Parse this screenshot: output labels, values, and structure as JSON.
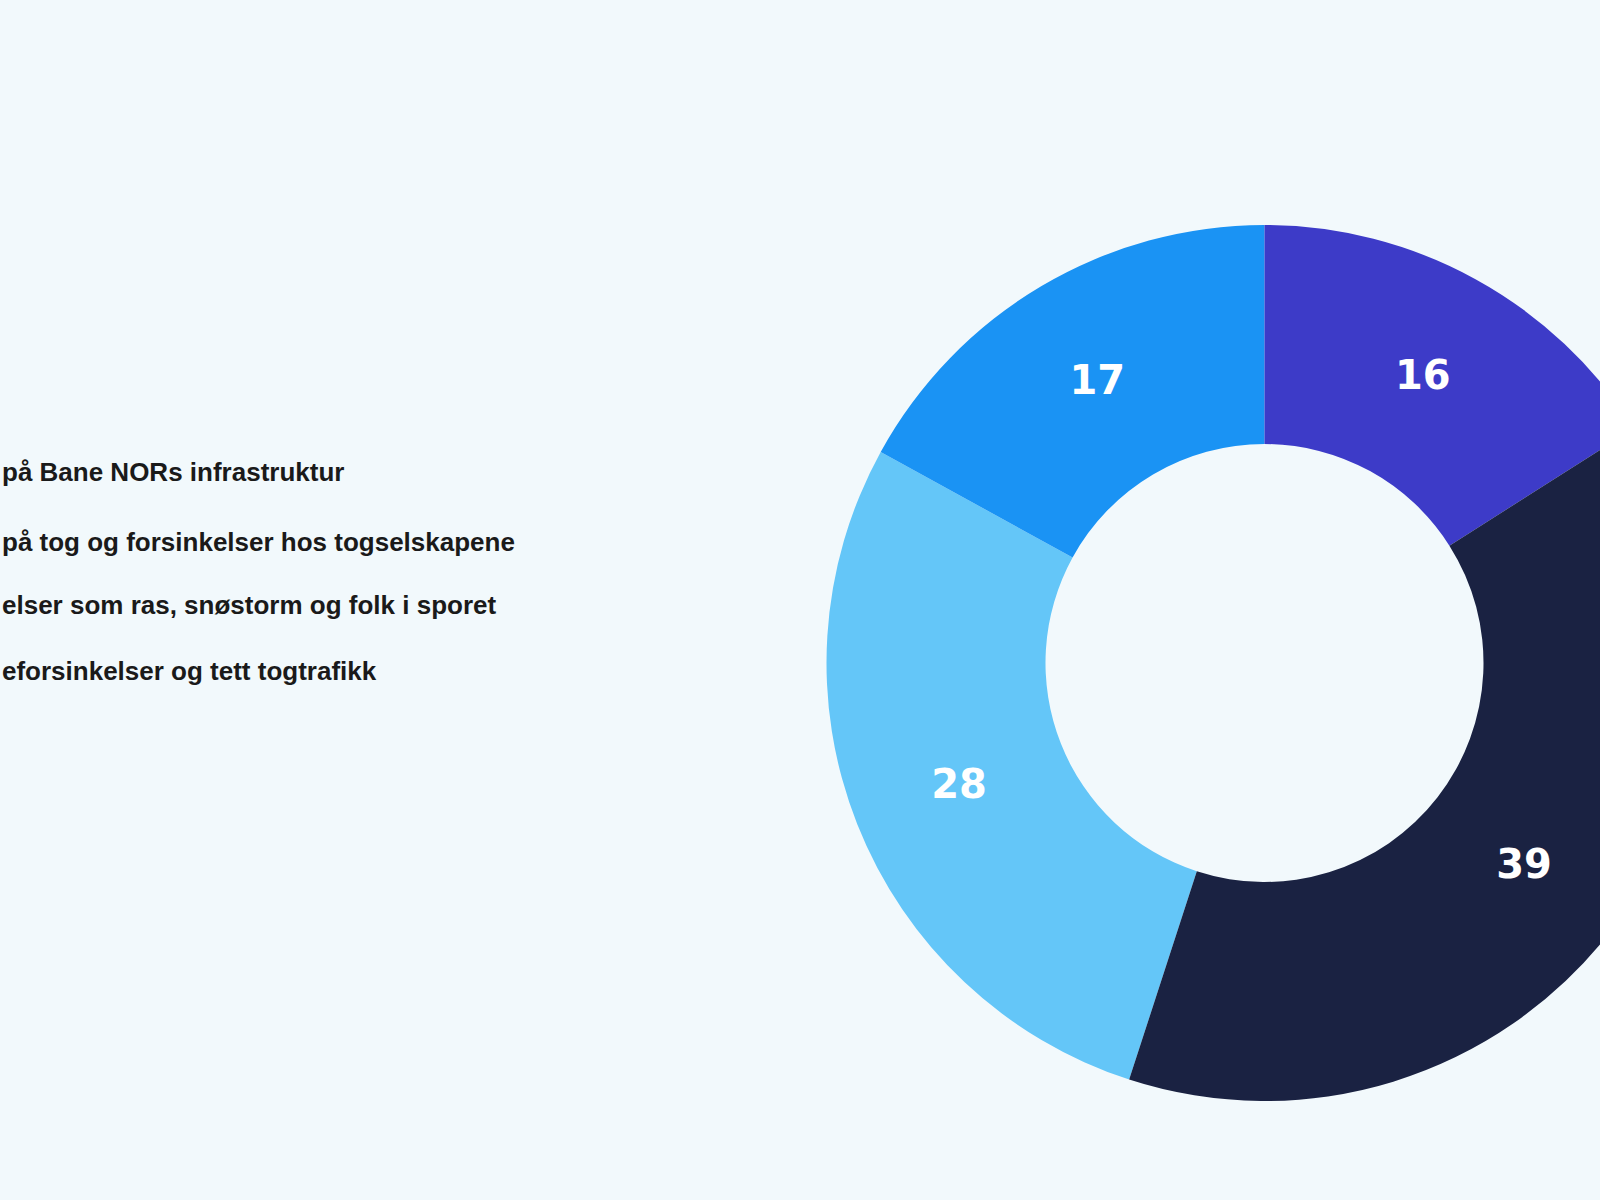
{
  "chart_data": {
    "type": "donut",
    "categories": [
      "på Bane NORs infrastruktur",
      "på tog og forsinkelser hos togselskapene",
      "elser som ras, snøstorm og folk i sporet",
      "eforsinkelser og tett togtrafikk"
    ],
    "values": [
      28,
      17,
      16,
      39
    ],
    "colors": [
      "#64c6f8",
      "#1a93f4",
      "#3d3bc8",
      "#1a2242"
    ],
    "data_labels": true
  }
}
